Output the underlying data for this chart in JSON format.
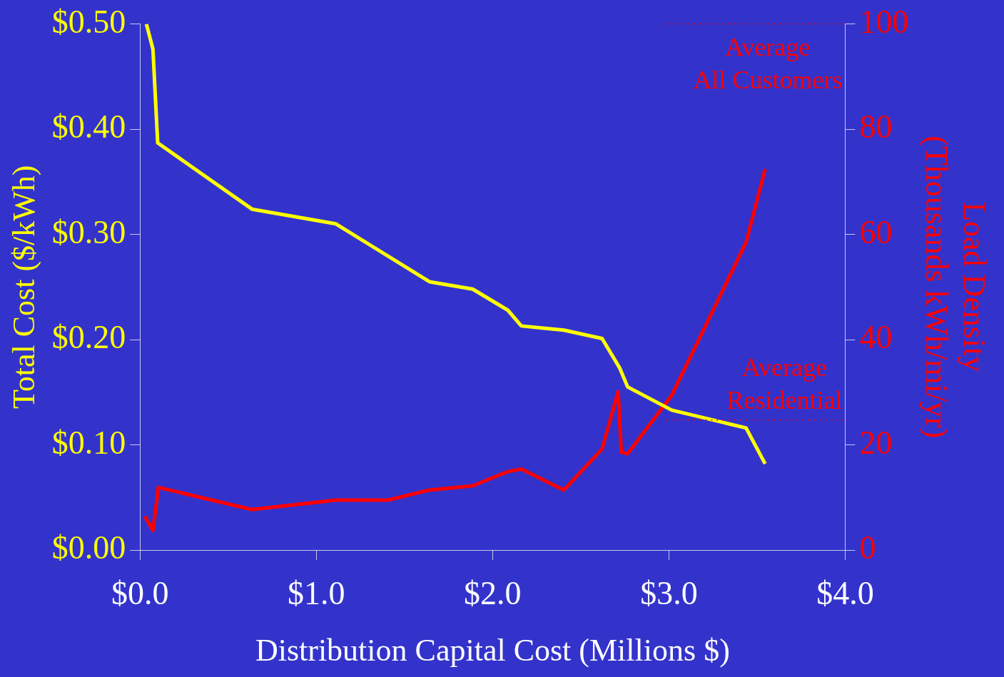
{
  "chart_data": {
    "type": "line",
    "xlabel": "Distribution Capital Cost (Millions $)",
    "ylabel": "Total Cost ($/kWh)",
    "y2label": "Load Density\n(Thousands kWh/mi/yr)",
    "xlim": [
      0,
      4
    ],
    "xticks": [
      {
        "value": 0,
        "label": "$0.0"
      },
      {
        "value": 1,
        "label": "$1.0"
      },
      {
        "value": 2,
        "label": "$2.0"
      },
      {
        "value": 3,
        "label": "$3.0"
      },
      {
        "value": 4,
        "label": "$4.0"
      }
    ],
    "ylim": [
      0,
      0.5
    ],
    "yticks": [
      {
        "value": 0,
        "label": "$0.00"
      },
      {
        "value": 0.1,
        "label": "$0.10"
      },
      {
        "value": 0.2,
        "label": "$0.20"
      },
      {
        "value": 0.3,
        "label": "$0.30"
      },
      {
        "value": 0.4,
        "label": "$0.40"
      },
      {
        "value": 0.5,
        "label": "$0.50"
      }
    ],
    "y2lim": [
      0,
      100
    ],
    "y2ticks": [
      0,
      20,
      40,
      60,
      80,
      100
    ],
    "series": [
      {
        "color": "#ffff00",
        "x": [
          0.036,
          0.073,
          0.1,
          0.635,
          1.111,
          1.642,
          1.887,
          2.086,
          2.163,
          2.404,
          2.621,
          2.721,
          2.766,
          3.016,
          3.438,
          3.546
        ],
        "values": [
          0.5,
          0.476,
          0.387,
          0.324,
          0.31,
          0.255,
          0.248,
          0.228,
          0.213,
          0.209,
          0.201,
          0.173,
          0.155,
          0.133,
          0.116,
          0.082
        ]
      },
      {
        "color": "#ff0000",
        "axis": "y2",
        "x": [
          0.027,
          0.073,
          0.104,
          0.635,
          1.111,
          1.406,
          1.642,
          1.887,
          2.086,
          2.163,
          2.404,
          2.621,
          2.712,
          2.73,
          2.766,
          3.016,
          3.438,
          3.546
        ],
        "values": [
          6.4,
          3.7,
          11.9,
          7.7,
          9.5,
          9.5,
          11.4,
          12.2,
          14.9,
          15.4,
          11.4,
          19.2,
          30.1,
          18.6,
          18.3,
          29.4,
          58.5,
          72.4
        ]
      }
    ],
    "ref_lines": [
      {
        "axis": "y2",
        "value": 100,
        "label": "Average\nAll Customers",
        "color": "#ff0000",
        "line_style": "dotted"
      },
      {
        "axis": "y2",
        "value": 24.7,
        "label": "Average\nResidential",
        "color": "#ff0000",
        "line_style": "dotted"
      }
    ],
    "grid": false,
    "legend": false,
    "marker": "none",
    "line_style": "solid"
  }
}
